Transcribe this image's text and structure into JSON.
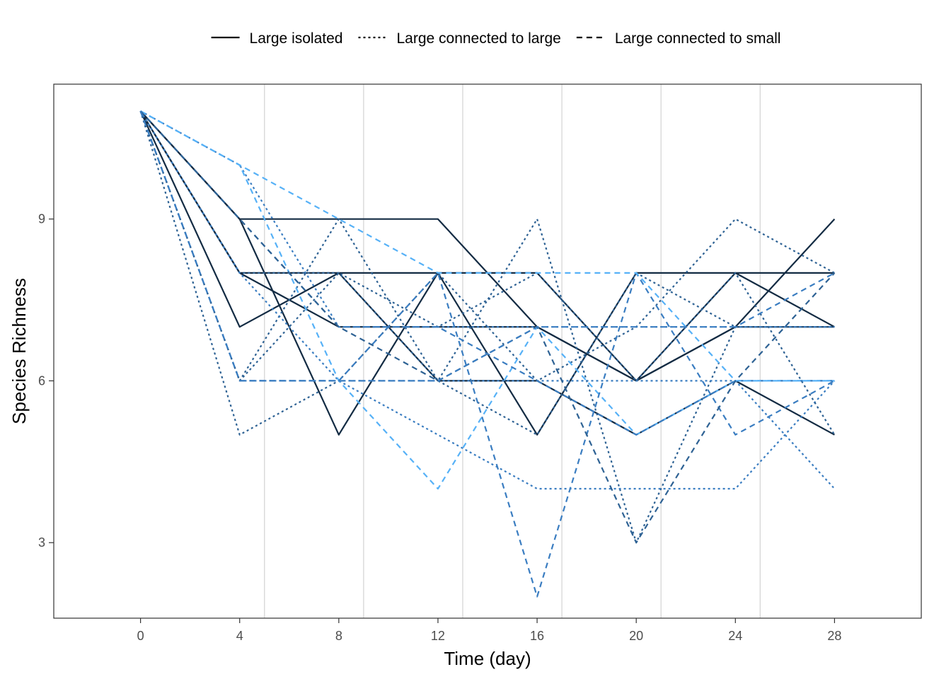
{
  "chart_data": {
    "type": "line",
    "title": "",
    "xlabel": "Time (day)",
    "ylabel": "Species Richness",
    "xlim": [
      -3.5,
      31.5
    ],
    "ylim": [
      1.6,
      11.5
    ],
    "x_ticks": [
      0,
      4,
      8,
      12,
      16,
      20,
      24,
      28
    ],
    "x_tick_labels": [
      "0",
      "4",
      "8",
      "12",
      "16",
      "20",
      "24",
      "28"
    ],
    "y_ticks": [
      3,
      6,
      9
    ],
    "y_tick_labels": [
      "3",
      "6",
      "9"
    ],
    "vertical_reference_lines": [
      5,
      9,
      13,
      17,
      21,
      25
    ],
    "grid": false,
    "legend_position": "top",
    "legend": [
      {
        "label": "Large isolated",
        "dash": "solid"
      },
      {
        "label": "Large connected to large",
        "dash": "dotted"
      },
      {
        "label": "Large connected to small",
        "dash": "dashed"
      }
    ],
    "colors": {
      "dark": "#132B43",
      "mid": "#2E6294",
      "blue": "#3A7DC1",
      "light": "#56B1F7",
      "axis": "#333333",
      "reference_line": "#D9D9D9"
    },
    "x": [
      0,
      4,
      8,
      12,
      16,
      20,
      24,
      28
    ],
    "series": [
      {
        "group": 0,
        "color": "#132B43",
        "values": [
          11,
          9,
          9,
          9,
          7,
          6,
          7,
          9
        ]
      },
      {
        "group": 0,
        "color": "#132B43",
        "values": [
          11,
          7,
          8,
          6,
          6,
          5,
          6,
          5
        ]
      },
      {
        "group": 0,
        "color": "#132B43",
        "values": [
          11,
          9,
          5,
          8,
          5,
          8,
          8,
          7
        ]
      },
      {
        "group": 0,
        "color": "#132B43",
        "values": [
          11,
          8,
          8,
          8,
          8,
          6,
          8,
          8
        ]
      },
      {
        "group": 0,
        "color": "#132B43",
        "values": [
          11,
          8,
          7,
          7,
          7,
          6,
          7,
          7
        ]
      },
      {
        "group": 1,
        "color": "#2E6294",
        "values": [
          11,
          5,
          6,
          8,
          6,
          7,
          9,
          8
        ]
      },
      {
        "group": 1,
        "color": "#2E6294",
        "values": [
          11,
          8,
          8,
          6,
          5,
          8,
          7,
          7
        ]
      },
      {
        "group": 1,
        "color": "#2E6294",
        "values": [
          11,
          6,
          9,
          6,
          9,
          3,
          7,
          7
        ]
      },
      {
        "group": 1,
        "color": "#3A7DC1",
        "values": [
          11,
          8,
          6,
          5,
          4,
          4,
          4,
          6
        ]
      },
      {
        "group": 1,
        "color": "#3A7DC1",
        "values": [
          11,
          6,
          6,
          6,
          6,
          6,
          6,
          4
        ]
      },
      {
        "group": 1,
        "color": "#2E6294",
        "values": [
          11,
          6,
          8,
          7,
          8,
          6,
          8,
          5
        ]
      },
      {
        "group": 1,
        "color": "#3A7DC1",
        "values": [
          11,
          10,
          7,
          7,
          7,
          7,
          7,
          7
        ]
      },
      {
        "group": 2,
        "color": "#56B1F7",
        "values": [
          11,
          10,
          6,
          4,
          7,
          5,
          6,
          6
        ]
      },
      {
        "group": 2,
        "color": "#3A7DC1",
        "values": [
          11,
          9,
          7,
          7,
          6,
          5,
          6,
          6
        ]
      },
      {
        "group": 2,
        "color": "#3A7DC1",
        "values": [
          11,
          6,
          6,
          8,
          2,
          8,
          5,
          6
        ]
      },
      {
        "group": 2,
        "color": "#56B1F7",
        "values": [
          11,
          10,
          9,
          8,
          8,
          8,
          6,
          6
        ]
      },
      {
        "group": 2,
        "color": "#2E6294",
        "values": [
          11,
          9,
          7,
          6,
          7,
          3,
          6,
          8
        ]
      },
      {
        "group": 2,
        "color": "#3A7DC1",
        "values": [
          11,
          6,
          6,
          6,
          7,
          7,
          7,
          8
        ]
      }
    ]
  }
}
